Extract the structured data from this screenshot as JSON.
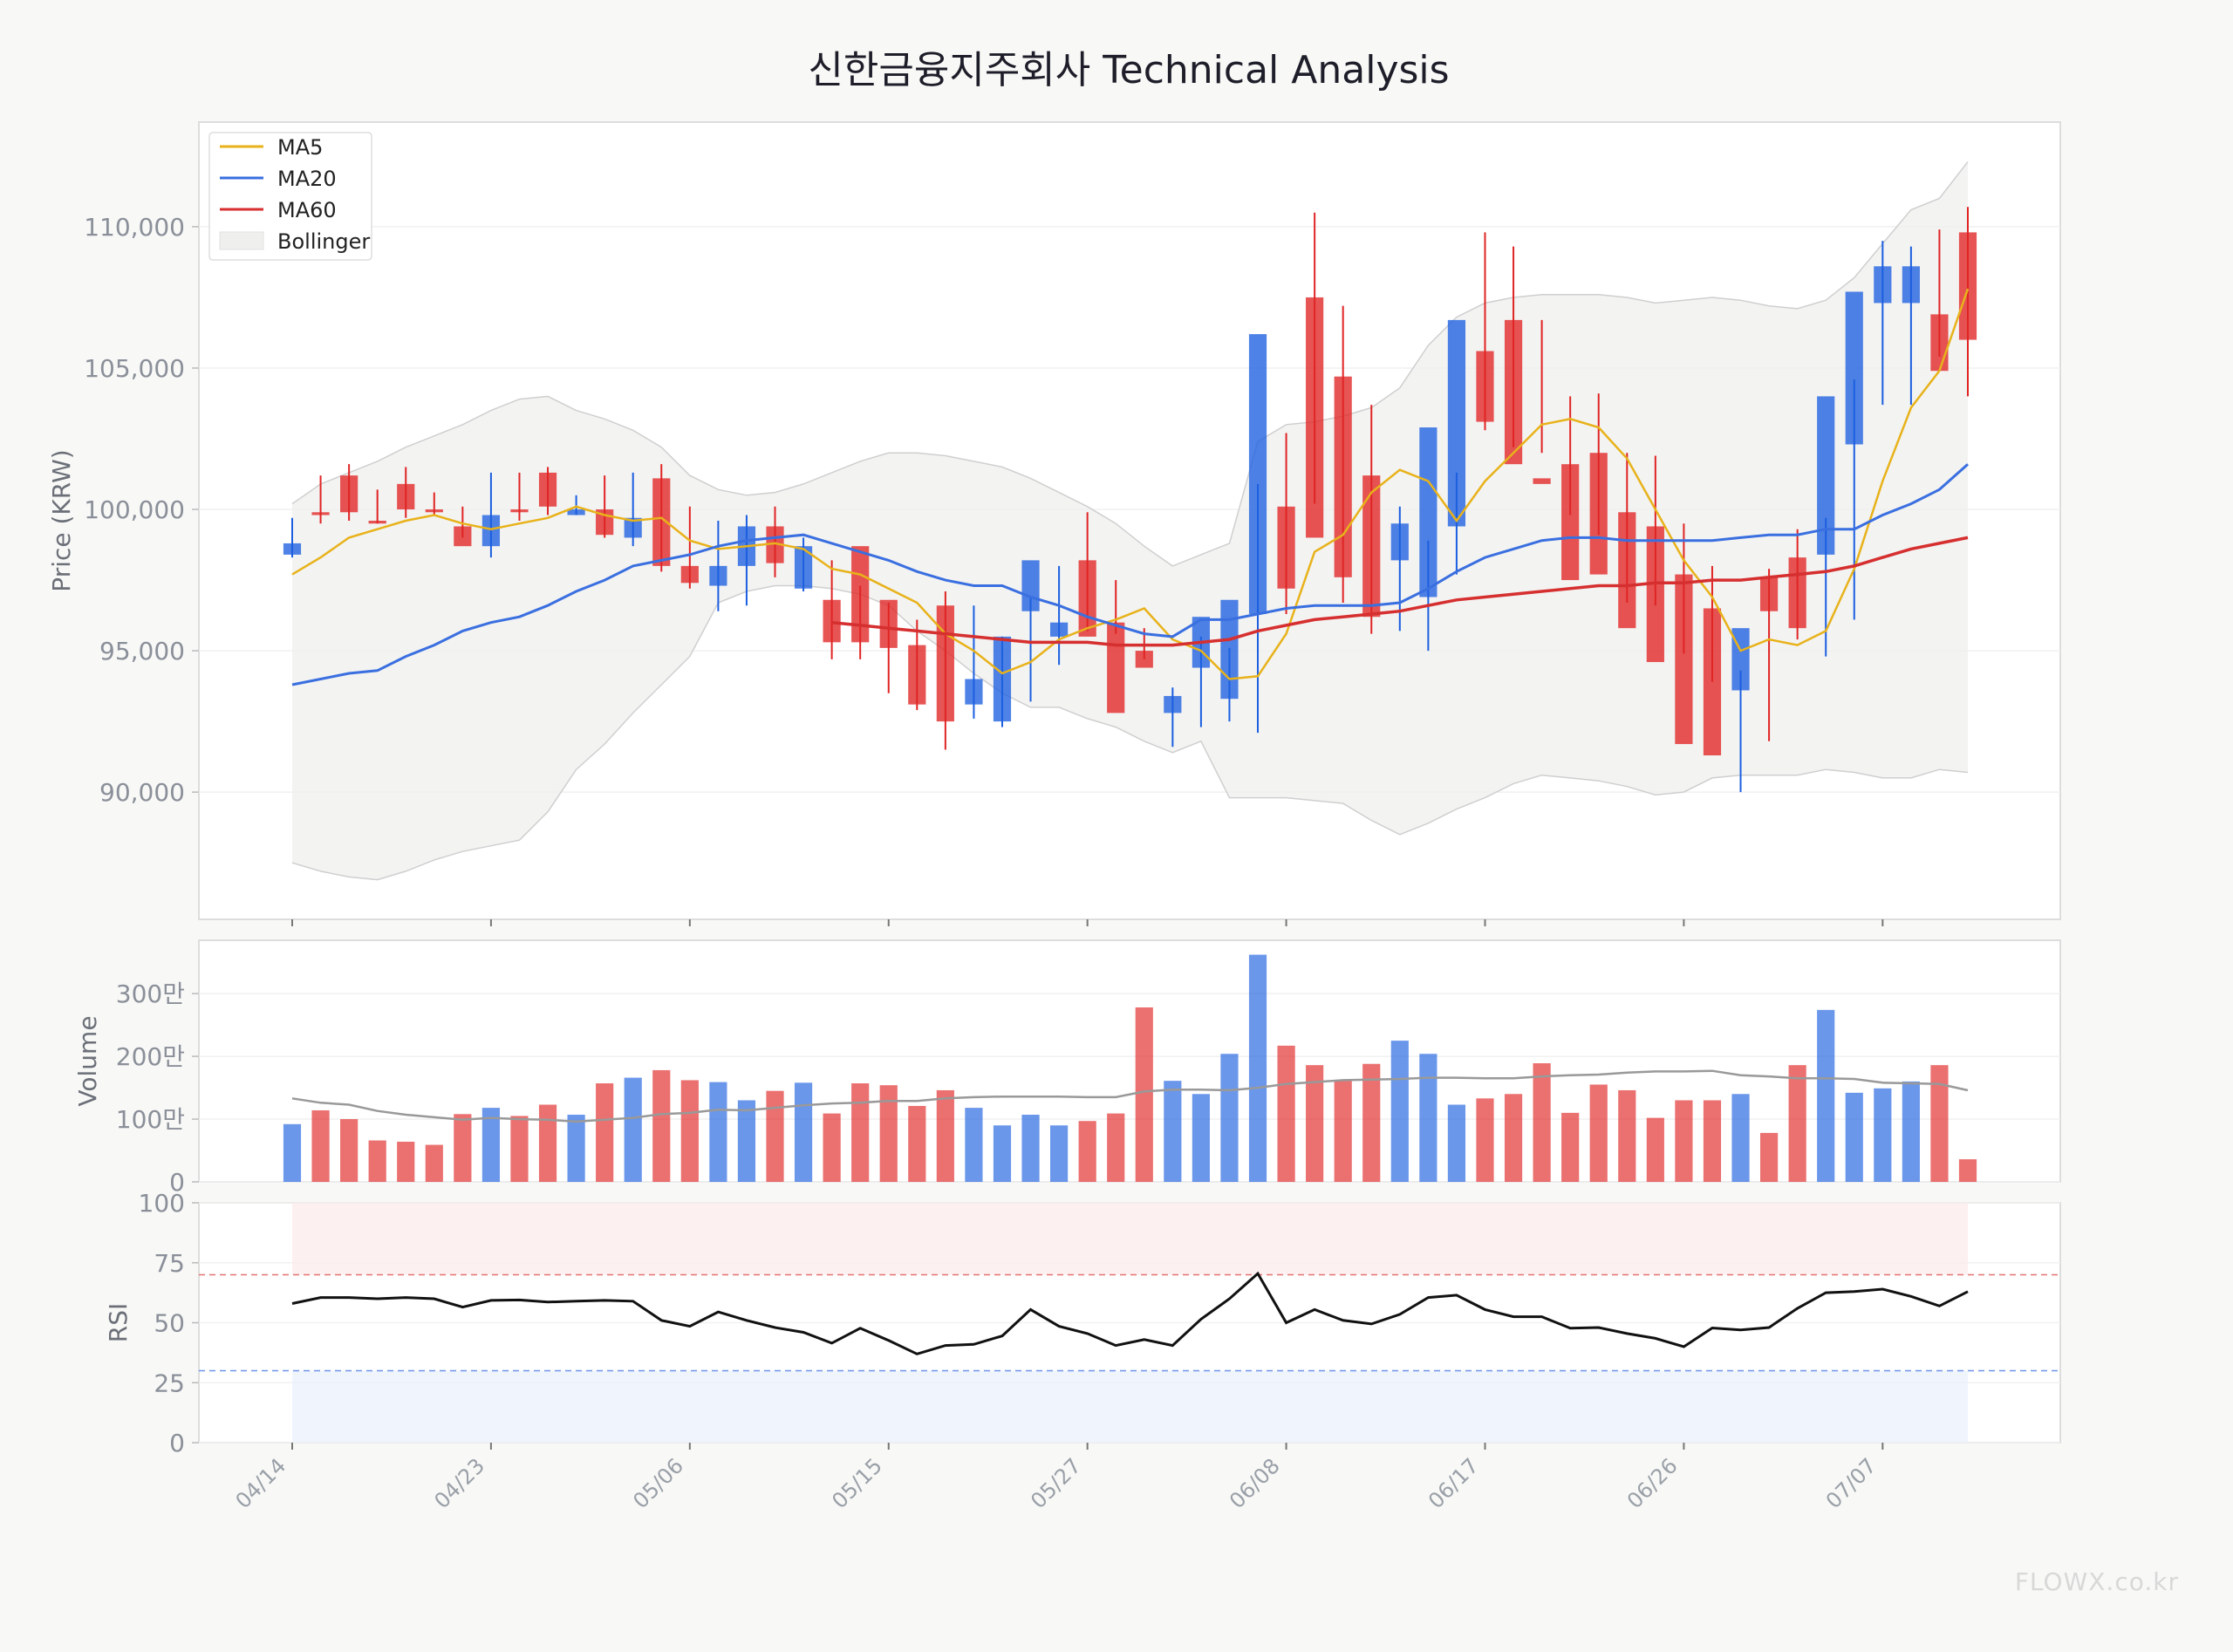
{
  "title": "신한금융지주회사 Technical Analysis",
  "watermark": "FLOWX.co.kr",
  "colors": {
    "background": "#f8f8f6",
    "panel": "#ffffff",
    "up": "#e02424",
    "down": "#1c5fe0",
    "ma5": "#e8b21a",
    "ma20": "#3a6fe0",
    "ma60": "#d62f2f",
    "bollinger_fill": "#efefee",
    "rsi_line": "#111111",
    "volume_ma": "#999999",
    "overbought_fill": "#fdecec",
    "oversold_fill": "#ecf1fb"
  },
  "chart_data": [
    {
      "type": "candlestick",
      "title": "신한금융지주회사 Technical Analysis",
      "ylabel": "Price (KRW)",
      "ylim": [
        85500,
        113700
      ],
      "yticks": [
        90000,
        95000,
        100000,
        105000,
        110000
      ],
      "ytick_labels": [
        "90,000",
        "95,000",
        "100,000",
        "105,000",
        "110,000"
      ],
      "legend_position": "top-left",
      "legend": [
        "MA5",
        "MA20",
        "MA60",
        "Bollinger"
      ],
      "x_tick_labels": [
        "04/14",
        "04/23",
        "05/06",
        "05/15",
        "05/27",
        "06/08",
        "06/17",
        "06/26",
        "07/07"
      ],
      "x_tick_index": [
        0,
        7,
        14,
        21,
        28,
        35,
        42,
        49,
        56
      ],
      "candles": {
        "open": [
          98800,
          99800,
          99900,
          99500,
          100000,
          99900,
          98700,
          99800,
          99900,
          100100,
          100000,
          99100,
          99700,
          98000,
          97400,
          98000,
          99400,
          98100,
          98700,
          95300,
          95300,
          95100,
          93100,
          92500,
          94000,
          95500,
          98200,
          96000,
          95500,
          92800,
          94400,
          93400,
          96200,
          96800,
          106200,
          97200,
          99000,
          97600,
          96200,
          99500,
          102900,
          106700,
          103100,
          101600,
          100900,
          97500,
          97700,
          95800,
          94600,
          91700,
          91300,
          95800,
          96400,
          95800,
          104000,
          107700,
          108600,
          108600,
          104900,
          106000
        ],
        "close": [
          98400,
          99900,
          101200,
          99600,
          100900,
          100000,
          99400,
          98700,
          100000,
          101300,
          99800,
          100000,
          99000,
          101100,
          98000,
          97300,
          98000,
          99400,
          97200,
          96800,
          98700,
          96800,
          95200,
          96600,
          93100,
          92500,
          96400,
          95500,
          98200,
          96000,
          95000,
          92800,
          94400,
          93300,
          96300,
          100100,
          107500,
          104700,
          101200,
          98200,
          96900,
          99400,
          105600,
          106700,
          101100,
          101600,
          102000,
          99900,
          99400,
          97700,
          96500,
          93600,
          97600,
          98300,
          98400,
          102300,
          107300,
          107300,
          106900,
          109800
        ],
        "high": [
          99700,
          101200,
          101600,
          100700,
          101500,
          100600,
          100100,
          101300,
          101300,
          101500,
          100500,
          101200,
          101300,
          101600,
          100100,
          99600,
          99800,
          100100,
          99000,
          98200,
          97300,
          96700,
          96100,
          97100,
          96600,
          95500,
          96900,
          98000,
          99900,
          97500,
          95800,
          93700,
          95500,
          95100,
          100900,
          102700,
          110500,
          107200,
          103700,
          100100,
          98900,
          101300,
          109800,
          109300,
          106700,
          104000,
          104100,
          102000,
          101900,
          99500,
          98000,
          94300,
          97900,
          99300,
          99700,
          104600,
          109500,
          109300,
          109900,
          110700
        ],
        "low": [
          98300,
          99500,
          99600,
          99500,
          99700,
          99800,
          99000,
          98300,
          99600,
          99800,
          99800,
          99000,
          98700,
          97800,
          97200,
          96400,
          96600,
          97600,
          97100,
          94700,
          94700,
          93500,
          92900,
          91500,
          92600,
          92300,
          93200,
          94500,
          95700,
          95600,
          94700,
          91600,
          92300,
          92500,
          92100,
          96300,
          100200,
          96700,
          95600,
          95700,
          95000,
          97700,
          102800,
          102200,
          102000,
          99800,
          99100,
          96700,
          96600,
          94900,
          93900,
          90000,
          91800,
          95400,
          94800,
          96100,
          103700,
          103700,
          105400,
          104000
        ],
        "up_is_red": true
      },
      "ma5": [
        97700,
        98300,
        99000,
        99300,
        99600,
        99800,
        99500,
        99300,
        99500,
        99700,
        100100,
        99800,
        99600,
        99700,
        98900,
        98600,
        98700,
        98800,
        98600,
        97900,
        97700,
        97200,
        96700,
        95600,
        95000,
        94200,
        94600,
        95400,
        95800,
        96100,
        96500,
        95400,
        95000,
        94000,
        94100,
        95600,
        98500,
        99100,
        100600,
        101400,
        101000,
        99600,
        101000,
        102000,
        103000,
        103200,
        102900,
        101800,
        100000,
        98200,
        96900,
        95000,
        95400,
        95200,
        95700,
        97900,
        101000,
        103600,
        104900,
        107800
      ],
      "ma20": [
        93800,
        94000,
        94200,
        94300,
        94800,
        95200,
        95700,
        96000,
        96200,
        96600,
        97100,
        97500,
        98000,
        98200,
        98400,
        98700,
        98900,
        99000,
        99100,
        98800,
        98500,
        98200,
        97800,
        97500,
        97300,
        97300,
        96900,
        96600,
        96200,
        95900,
        95600,
        95500,
        96100,
        96100,
        96300,
        96500,
        96600,
        96600,
        96600,
        96700,
        97200,
        97800,
        98300,
        98600,
        98900,
        99000,
        99000,
        98900,
        98900,
        98900,
        98900,
        99000,
        99100,
        99100,
        99300,
        99300,
        99800,
        100200,
        100700,
        101600
      ],
      "ma60": [
        null,
        null,
        null,
        null,
        null,
        null,
        null,
        null,
        null,
        null,
        null,
        null,
        null,
        null,
        null,
        null,
        null,
        null,
        null,
        96000,
        95900,
        95800,
        95700,
        95600,
        95500,
        95400,
        95300,
        95300,
        95300,
        95200,
        95200,
        95200,
        95300,
        95400,
        95700,
        95900,
        96100,
        96200,
        96300,
        96400,
        96600,
        96800,
        96900,
        97000,
        97100,
        97200,
        97300,
        97300,
        97400,
        97400,
        97500,
        97500,
        97600,
        97700,
        97800,
        98000,
        98300,
        98600,
        98800,
        99000
      ],
      "bollinger_upper": [
        100200,
        100900,
        101300,
        101700,
        102200,
        102600,
        103000,
        103500,
        103900,
        104000,
        103500,
        103200,
        102800,
        102200,
        101200,
        100700,
        100500,
        100600,
        100900,
        101300,
        101700,
        102000,
        102000,
        101900,
        101700,
        101500,
        101100,
        100600,
        100100,
        99500,
        98700,
        98000,
        98400,
        98800,
        102400,
        103000,
        103100,
        103300,
        103600,
        104300,
        105800,
        106800,
        107300,
        107500,
        107600,
        107600,
        107600,
        107500,
        107300,
        107400,
        107500,
        107400,
        107200,
        107100,
        107400,
        108200,
        109400,
        110600,
        111000,
        112300
      ],
      "bollinger_lower": [
        87500,
        87200,
        87000,
        86900,
        87200,
        87600,
        87900,
        88100,
        88300,
        89300,
        90800,
        91700,
        92800,
        93800,
        94800,
        96700,
        97100,
        97300,
        97300,
        97200,
        97000,
        96600,
        95700,
        95000,
        94200,
        93500,
        93000,
        93000,
        92600,
        92300,
        91800,
        91400,
        91800,
        89800,
        89800,
        89800,
        89700,
        89600,
        89000,
        88500,
        88900,
        89400,
        89800,
        90300,
        90600,
        90500,
        90400,
        90200,
        89900,
        90000,
        90500,
        90600,
        90600,
        90600,
        90800,
        90700,
        90500,
        90500,
        90800,
        90700
      ]
    },
    {
      "type": "bar",
      "ylabel": "Volume",
      "ylim": [
        0,
        3850000
      ],
      "yticks": [
        0,
        1000000,
        2000000,
        3000000
      ],
      "ytick_labels": [
        "0",
        "100만",
        "200만",
        "300만"
      ],
      "values": [
        920000,
        1140000,
        1000000,
        660000,
        640000,
        590000,
        1080000,
        1180000,
        1050000,
        1230000,
        1070000,
        1570000,
        1660000,
        1780000,
        1620000,
        1590000,
        1300000,
        1450000,
        1580000,
        1090000,
        1570000,
        1540000,
        1210000,
        1460000,
        1180000,
        900000,
        1070000,
        900000,
        970000,
        1090000,
        2780000,
        1610000,
        1400000,
        2040000,
        3620000,
        2170000,
        1860000,
        1620000,
        1880000,
        2250000,
        2040000,
        1230000,
        1330000,
        1400000,
        1890000,
        1100000,
        1550000,
        1460000,
        1020000,
        1300000,
        1300000,
        1400000,
        780000,
        1860000,
        2740000,
        1420000,
        1490000,
        1600000,
        1860000,
        360000
      ],
      "up_is_red": true,
      "volume_ma": [
        1330000,
        1260000,
        1230000,
        1130000,
        1070000,
        1030000,
        990000,
        1020000,
        1000000,
        990000,
        960000,
        990000,
        1020000,
        1080000,
        1100000,
        1150000,
        1140000,
        1180000,
        1220000,
        1250000,
        1260000,
        1290000,
        1290000,
        1330000,
        1350000,
        1360000,
        1360000,
        1360000,
        1350000,
        1350000,
        1440000,
        1470000,
        1470000,
        1460000,
        1500000,
        1560000,
        1590000,
        1620000,
        1630000,
        1640000,
        1660000,
        1660000,
        1650000,
        1650000,
        1680000,
        1700000,
        1710000,
        1740000,
        1760000,
        1760000,
        1770000,
        1700000,
        1680000,
        1650000,
        1650000,
        1640000,
        1580000,
        1570000,
        1560000,
        1460000
      ]
    },
    {
      "type": "line",
      "ylabel": "RSI",
      "ylim": [
        0,
        100
      ],
      "yticks": [
        0,
        25,
        50,
        75,
        100
      ],
      "ytick_labels": [
        "0",
        "25",
        "50",
        "75",
        "100"
      ],
      "overbought": 70,
      "oversold": 30,
      "values": [
        58,
        60.5,
        60.5,
        60,
        60.5,
        60,
        56.5,
        59.3,
        59.5,
        58.6,
        59,
        59.3,
        59,
        51,
        48.5,
        54.5,
        51,
        48,
        46,
        41.5,
        47.7,
        42.6,
        37,
        40.5,
        41,
        44.5,
        55.5,
        48.5,
        45.5,
        40.5,
        43,
        40.5,
        51.5,
        60,
        70.5,
        50,
        55.5,
        51,
        49.5,
        53.5,
        60.5,
        61.5,
        55.5,
        52.5,
        52.5,
        47.7,
        48,
        45.5,
        43.5,
        40,
        47.8,
        47,
        48,
        56,
        62.5,
        63,
        64,
        61,
        57,
        63
      ]
    }
  ]
}
